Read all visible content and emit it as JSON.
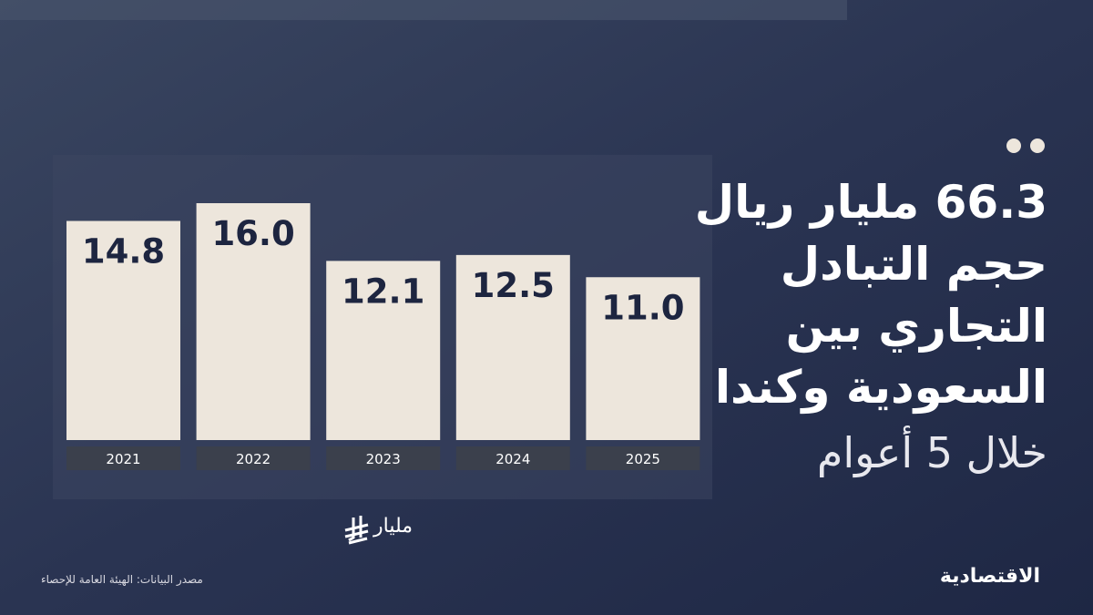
{
  "chart_data": {
    "type": "bar",
    "title_lines": [
      "66.3 مليار ريال",
      "حجم التبادل",
      "التجاري بين",
      "السعودية وكندا"
    ],
    "subtitle": "خلال 5 أعوام",
    "unit": "مليار",
    "categories": [
      "2021",
      "2022",
      "2023",
      "2024",
      "2025"
    ],
    "values": [
      14.8,
      16,
      12.1,
      12.5,
      11
    ],
    "value_labels": [
      "14.8",
      "16.0",
      "12.1",
      "12.5",
      "11.0"
    ],
    "color": "#ede6dc",
    "source": "مصدر البيانات: الهيئة العامة للإحصاء",
    "brand": "الاقتصادية"
  }
}
